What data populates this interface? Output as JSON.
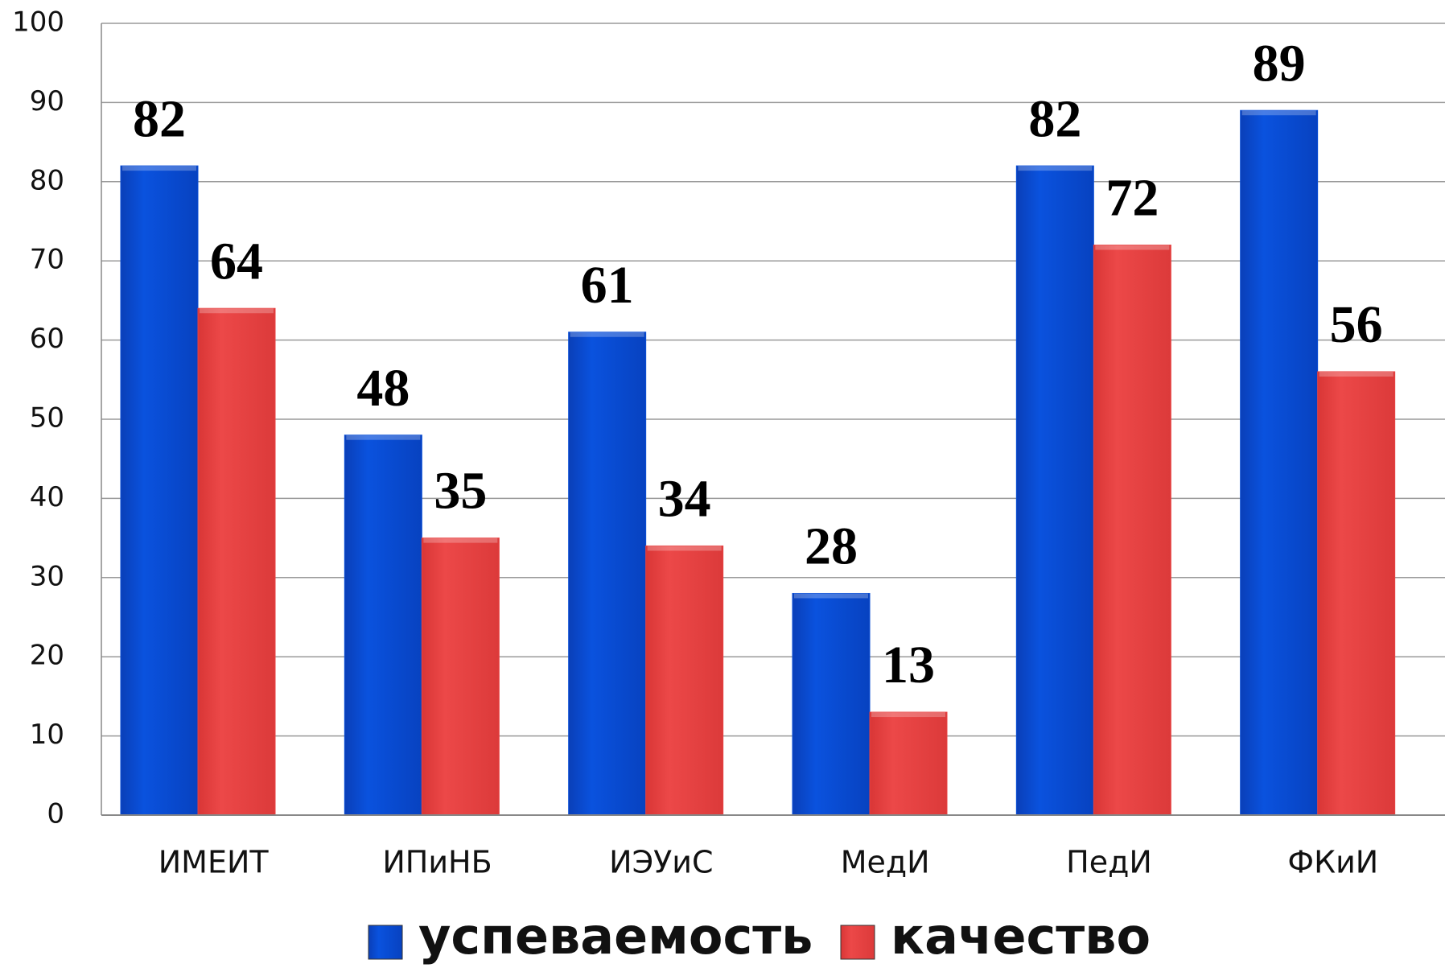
{
  "chart_data": {
    "type": "bar",
    "categories": [
      "ИМЕИТ",
      "ИПиНБ",
      "ИЭУиС",
      "МедИ",
      "ПедИ",
      "ФКиИ"
    ],
    "series": [
      {
        "name": "успеваемость",
        "color": "#0a4ed6",
        "values": [
          82,
          48,
          61,
          28,
          82,
          89
        ]
      },
      {
        "name": "качество",
        "color": "#e84242",
        "values": [
          64,
          35,
          34,
          13,
          72,
          56
        ]
      }
    ],
    "ylim": [
      0,
      100
    ],
    "yticks": [
      0,
      10,
      20,
      30,
      40,
      50,
      60,
      70,
      80,
      90,
      100
    ],
    "grid": true,
    "legend": "bottom",
    "data_labels": true
  }
}
